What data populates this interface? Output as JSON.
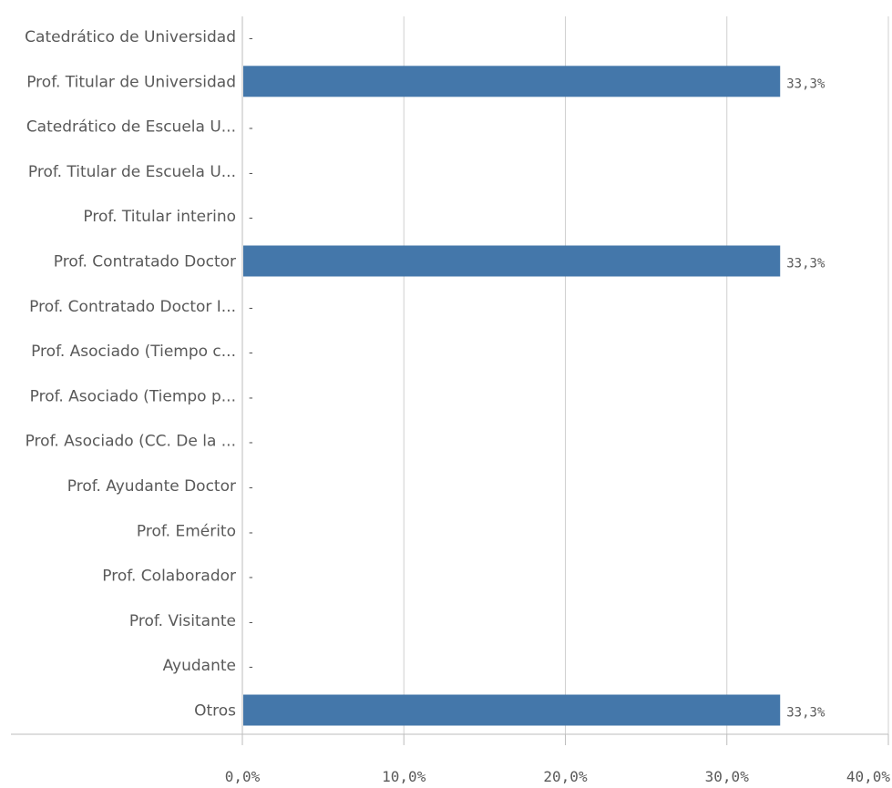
{
  "chart_data": {
    "type": "bar",
    "orientation": "horizontal",
    "title": "",
    "xlabel": "",
    "ylabel": "",
    "categories": [
      "Catedrático de Universidad",
      "Prof. Titular de Universidad",
      "Catedrático de Escuela U...",
      "Prof. Titular de Escuela U...",
      "Prof. Titular interino",
      "Prof. Contratado Doctor",
      "Prof. Contratado Doctor I...",
      "Prof. Asociado (Tiempo c...",
      "Prof. Asociado (Tiempo p...",
      "Prof. Asociado (CC. De la ...",
      "Prof. Ayudante Doctor",
      "Prof. Emérito",
      "Prof. Colaborador",
      "Prof. Visitante",
      "Ayudante",
      "Otros"
    ],
    "values": [
      null,
      33.3,
      null,
      null,
      null,
      33.3,
      null,
      null,
      null,
      null,
      null,
      null,
      null,
      null,
      null,
      33.3
    ],
    "value_labels": [
      "-",
      "33,3%",
      "-",
      "-",
      "-",
      "33,3%",
      "-",
      "-",
      "-",
      "-",
      "-",
      "-",
      "-",
      "-",
      "-",
      "33,3%"
    ],
    "xlim": [
      0,
      40
    ],
    "x_ticks": [
      0,
      10,
      20,
      30,
      40
    ],
    "x_tick_labels": [
      "0,0%",
      "10,0%",
      "20,0%",
      "30,0%",
      "40,0%"
    ],
    "grid": "vertical",
    "legend": "none",
    "colors": {
      "bar": "#4477aa",
      "grid": "#d0d0d0",
      "axis": "#bdbdbd",
      "text": "#595959"
    }
  }
}
